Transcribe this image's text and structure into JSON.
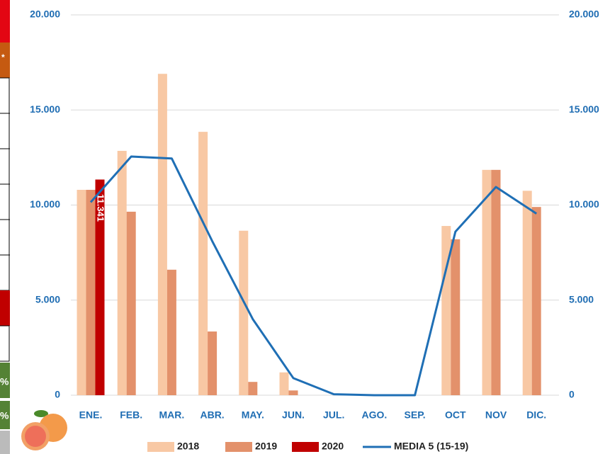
{
  "sidebar": [
    "*",
    "%",
    "%"
  ],
  "chart_data": {
    "type": "bar",
    "categories": [
      "ENE.",
      "FEB.",
      "MAR.",
      "ABR.",
      "MAY.",
      "JUN.",
      "JUL.",
      "AGO.",
      "SEP.",
      "OCT",
      "NOV",
      "DIC."
    ],
    "series": [
      {
        "name": "2018",
        "color": "#f8c8a4",
        "values": [
          10800,
          12850,
          16900,
          13850,
          8650,
          1200,
          null,
          null,
          null,
          8900,
          11850,
          10750
        ]
      },
      {
        "name": "2019",
        "color": "#e3916b",
        "values": [
          10800,
          9650,
          6600,
          3350,
          700,
          250,
          null,
          null,
          null,
          8200,
          11850,
          9900
        ]
      },
      {
        "name": "2020",
        "color": "#c00000",
        "values": [
          11341,
          null,
          null,
          null,
          null,
          null,
          null,
          null,
          null,
          null,
          null,
          null
        ],
        "value_labels": [
          "11.341",
          null,
          null,
          null,
          null,
          null,
          null,
          null,
          null,
          null,
          null,
          null
        ]
      },
      {
        "name": "MEDIA 5 (15-19)",
        "type": "line",
        "color": "#1f6fb5",
        "axis": "y2",
        "values": [
          10150,
          12550,
          12450,
          8100,
          4000,
          900,
          50,
          0,
          0,
          8600,
          10950,
          9550
        ]
      }
    ],
    "ylim": [
      0,
      20000
    ],
    "yticks": [
      0,
      {
        "value": 5000,
        "label": "5.000"
      },
      {
        "value": 10000,
        "label": "10.000"
      },
      {
        "value": 15000,
        "label": "15.000"
      },
      {
        "value": 20000,
        "label": "20.000"
      }
    ],
    "y2lim": [
      0,
      20000
    ],
    "y2ticks": [
      0,
      {
        "value": 5000,
        "label": "5.000"
      },
      {
        "value": 10000,
        "label": "10.000"
      },
      {
        "value": 15000,
        "label": "15.000"
      },
      {
        "value": 20000,
        "label": "20.000"
      }
    ],
    "grid": true,
    "legend": "bottom"
  }
}
